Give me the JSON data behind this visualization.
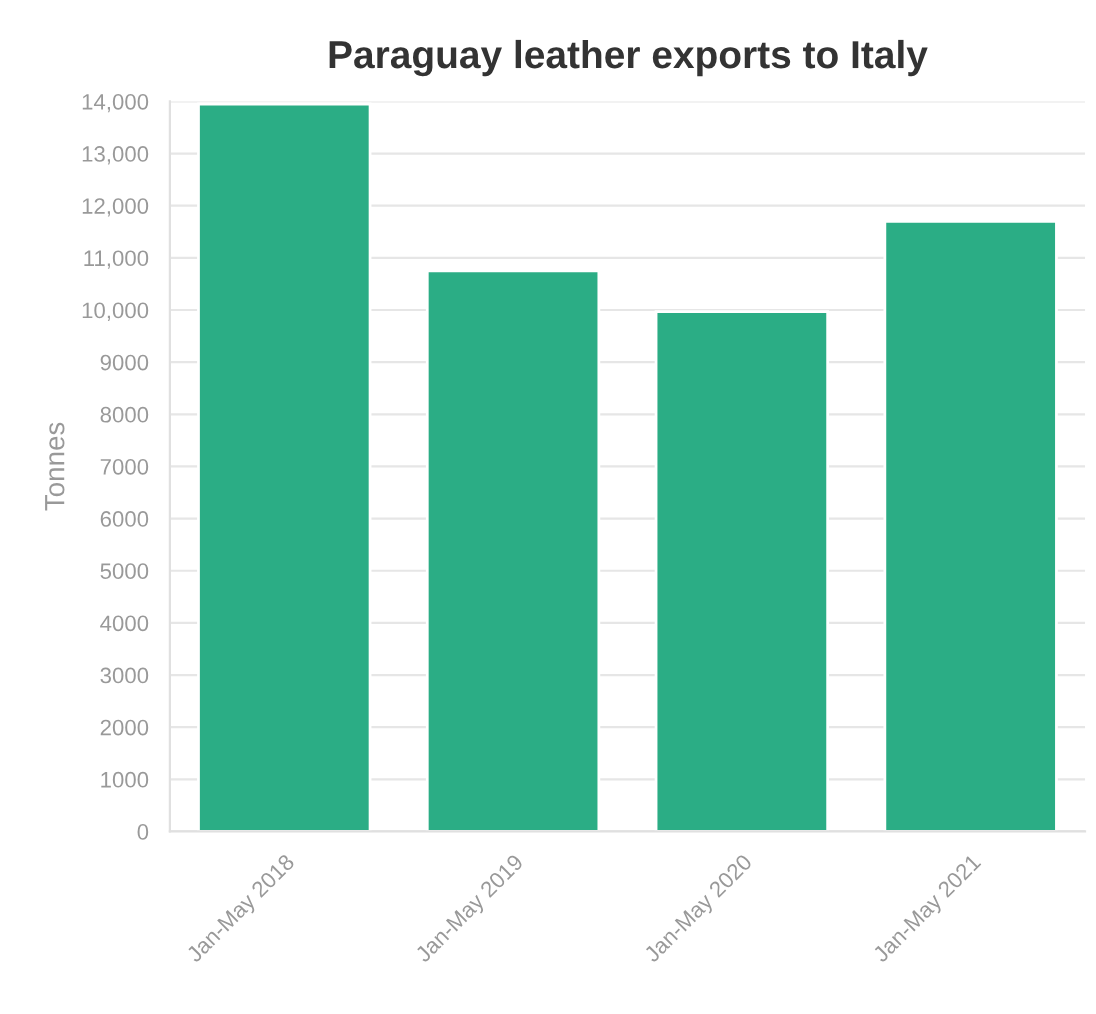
{
  "chart_data": {
    "type": "bar",
    "title": "Paraguay leather exports to Italy",
    "ylabel": "Tonnes",
    "categories": [
      "Jan-May 2018",
      "Jan-May 2019",
      "Jan-May 2020",
      "Jan-May 2021"
    ],
    "values": [
      13950,
      10750,
      9970,
      11700
    ],
    "color": "#2bad85",
    "ylim": [
      0,
      14000
    ],
    "yticks": [
      0,
      1000,
      2000,
      3000,
      4000,
      5000,
      6000,
      7000,
      8000,
      9000,
      {
        "value": 10000,
        "label": "10,000"
      },
      {
        "value": 11000,
        "label": "11,000"
      },
      {
        "value": 12000,
        "label": "12,000"
      },
      {
        "value": 13000,
        "label": "13,000"
      },
      {
        "value": 14000,
        "label": "14,000"
      }
    ],
    "grid": "y",
    "legend": false
  }
}
